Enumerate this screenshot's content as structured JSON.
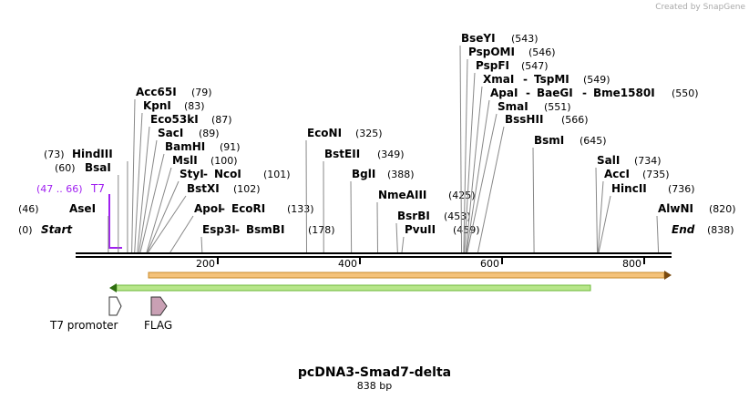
{
  "credit": "Created by SnapGene",
  "separator": "-",
  "sites": [
    {
      "names": [
        "Start"
      ],
      "position": {
        "value": 0,
        "label": "(0)"
      }
    },
    {
      "names": [
        "AseI"
      ],
      "position": {
        "value": 46,
        "label": "(46)"
      }
    },
    {
      "names": [
        "BsaI"
      ],
      "position": {
        "value": 60,
        "label": "(60)"
      }
    },
    {
      "names": [
        "HindIII"
      ],
      "position": {
        "value": 73,
        "label": "(73)"
      }
    },
    {
      "names": [
        "Acc65I"
      ],
      "position": {
        "value": 79,
        "label": "(79)"
      }
    },
    {
      "names": [
        "KpnI"
      ],
      "position": {
        "value": 83,
        "label": "(83)"
      }
    },
    {
      "names": [
        "Eco53kI"
      ],
      "position": {
        "value": 87,
        "label": "(87)"
      }
    },
    {
      "names": [
        "SacI"
      ],
      "position": {
        "value": 89,
        "label": "(89)"
      }
    },
    {
      "names": [
        "BamHI"
      ],
      "position": {
        "value": 91,
        "label": "(91)"
      }
    },
    {
      "names": [
        "MslI"
      ],
      "position": {
        "value": 100,
        "label": "(100)"
      }
    },
    {
      "names": [
        "StyI",
        "NcoI"
      ],
      "position": {
        "value": 101,
        "label": "(101)"
      }
    },
    {
      "names": [
        "BstXI"
      ],
      "position": {
        "value": 102,
        "label": "(102)"
      }
    },
    {
      "names": [
        "ApoI",
        "EcoRI"
      ],
      "position": {
        "value": 133,
        "label": "(133)"
      }
    },
    {
      "names": [
        "Esp3I",
        "BsmBI"
      ],
      "position": {
        "value": 178,
        "label": "(178)"
      }
    },
    {
      "names": [
        "EcoNI"
      ],
      "position": {
        "value": 325,
        "label": "(325)"
      }
    },
    {
      "names": [
        "BstEII"
      ],
      "position": {
        "value": 349,
        "label": "(349)"
      }
    },
    {
      "names": [
        "BglI"
      ],
      "position": {
        "value": 388,
        "label": "(388)"
      }
    },
    {
      "names": [
        "NmeAIII"
      ],
      "position": {
        "value": 425,
        "label": "(425)"
      }
    },
    {
      "names": [
        "BsrBI"
      ],
      "position": {
        "value": 453,
        "label": "(453)"
      }
    },
    {
      "names": [
        "PvuII"
      ],
      "position": {
        "value": 459,
        "label": "(459)"
      }
    },
    {
      "names": [
        "BseYI"
      ],
      "position": {
        "value": 543,
        "label": "(543)"
      }
    },
    {
      "names": [
        "PspOMI"
      ],
      "position": {
        "value": 546,
        "label": "(546)"
      }
    },
    {
      "names": [
        "PspFI"
      ],
      "position": {
        "value": 547,
        "label": "(547)"
      }
    },
    {
      "names": [
        "XmaI",
        "TspMI"
      ],
      "position": {
        "value": 549,
        "label": "(549)"
      }
    },
    {
      "names": [
        "ApaI",
        "BaeGI",
        "Bme1580I"
      ],
      "position": {
        "value": 550,
        "label": "(550)"
      }
    },
    {
      "names": [
        "SmaI"
      ],
      "position": {
        "value": 551,
        "label": "(551)"
      }
    },
    {
      "names": [
        "BssHII"
      ],
      "position": {
        "value": 566,
        "label": "(566)"
      }
    },
    {
      "names": [
        "BsmI"
      ],
      "position": {
        "value": 645,
        "label": "(645)"
      }
    },
    {
      "names": [
        "SalI"
      ],
      "position": {
        "value": 734,
        "label": "(734)"
      }
    },
    {
      "names": [
        "AccI"
      ],
      "position": {
        "value": 735,
        "label": "(735)"
      }
    },
    {
      "names": [
        "HincII"
      ],
      "position": {
        "value": 736,
        "label": "(736)"
      }
    },
    {
      "names": [
        "AlwNI"
      ],
      "position": {
        "value": 820,
        "label": "(820)"
      }
    },
    {
      "names": [
        "End"
      ],
      "position": {
        "value": 838,
        "label": "(838)"
      }
    }
  ],
  "feature": {
    "name": "T7",
    "range": "(47 .. 66)"
  },
  "ruler_ticks": [
    200,
    400,
    600,
    800
  ],
  "legend": [
    "T7 promoter",
    "FLAG"
  ],
  "title": "pcDNA3-Smad7-delta",
  "length": "838 bp"
}
